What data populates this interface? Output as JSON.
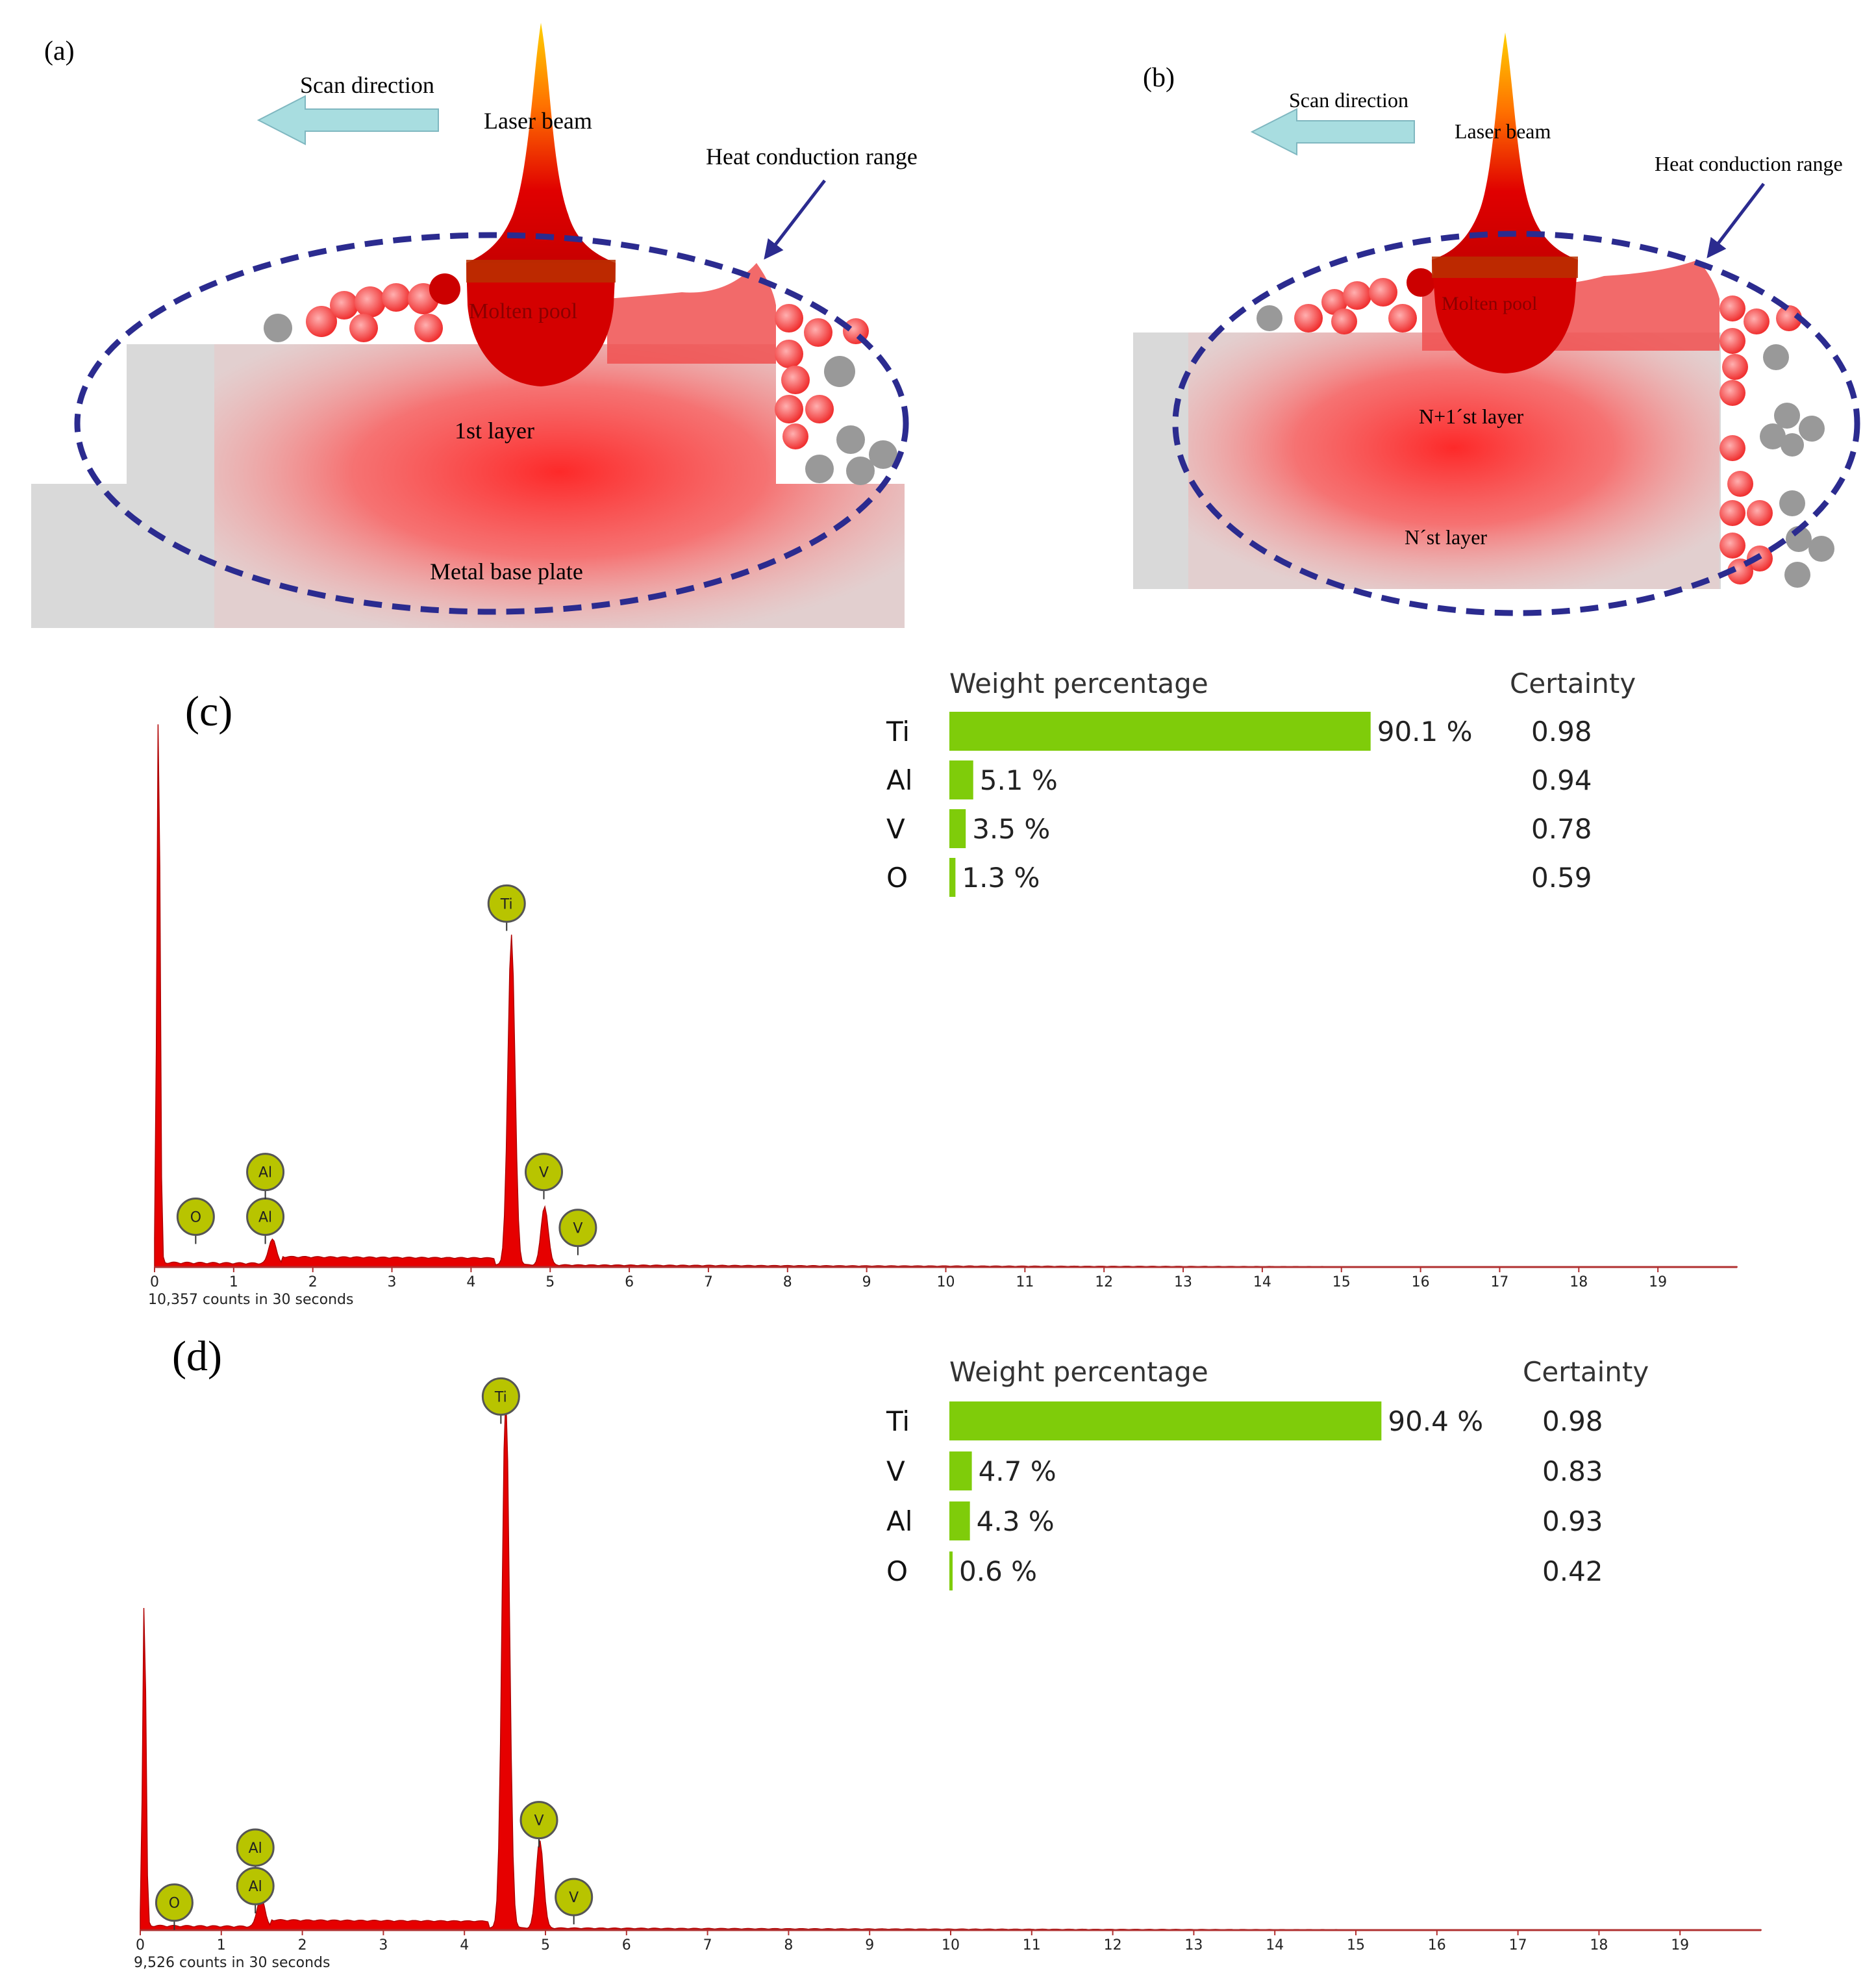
{
  "colors": {
    "bar": "#7fcc0a",
    "peak": "#e60000",
    "marker_fill": "#b8c400",
    "ellipse": "#2b2b8f",
    "arrow": "#a8dde0",
    "base": "#d9d9d9"
  },
  "panel_a": {
    "label": "(a)",
    "scan_direction": "Scan direction",
    "laser_beam": "Laser beam",
    "heat_conduction": "Heat conduction range",
    "molten_pool": "Molten pool",
    "layer1": "1st layer",
    "base_plate": "Metal base plate"
  },
  "panel_b": {
    "label": "(b)",
    "scan_direction": "Scan direction",
    "laser_beam": "Laser beam",
    "heat_conduction": "Heat conduction range",
    "molten_pool": "Molten pool",
    "layer_n1": "N+1´st layer",
    "layer_n": "N´st layer"
  },
  "chart_data": [
    {
      "type": "bar",
      "panel": "(c)",
      "title": "Weight percentage",
      "certainty_header": "Certainty",
      "categories": [
        "Ti",
        "Al",
        "V",
        "O"
      ],
      "values": [
        90.1,
        5.1,
        3.5,
        1.3
      ],
      "value_labels": [
        "90.1 %",
        "5.1 %",
        "3.5 %",
        "1.3 %"
      ],
      "certainty": [
        "0.98",
        "0.94",
        "0.78",
        "0.59"
      ]
    },
    {
      "type": "line",
      "panel": "(c)",
      "xlim": [
        0,
        20
      ],
      "x_ticks": [
        "0",
        "1",
        "2",
        "3",
        "4",
        "5",
        "6",
        "7",
        "8",
        "9",
        "10",
        "11",
        "12",
        "13",
        "14",
        "15",
        "16",
        "17",
        "18",
        "19"
      ],
      "caption": "10,357 counts in 30 seconds",
      "peaks": [
        {
          "x": 0.05,
          "h": 1.0
        },
        {
          "x": 1.49,
          "h": 0.045
        },
        {
          "x": 4.51,
          "h": 0.59
        },
        {
          "x": 4.93,
          "h": 0.105
        }
      ],
      "markers": [
        {
          "label": "O",
          "x": 0.52,
          "level": 0.09
        },
        {
          "label": "Al",
          "x": 1.4,
          "level": 0.09
        },
        {
          "label": "Al",
          "x": 1.4,
          "level": 0.17
        },
        {
          "label": "Ti",
          "x": 4.45,
          "level": 0.65
        },
        {
          "label": "V",
          "x": 4.92,
          "level": 0.17
        },
        {
          "label": "V",
          "x": 5.35,
          "level": 0.07
        }
      ]
    },
    {
      "type": "bar",
      "panel": "(d)",
      "title": "Weight percentage",
      "certainty_header": "Certainty",
      "categories": [
        "Ti",
        "V",
        "Al",
        "O"
      ],
      "values": [
        90.4,
        4.7,
        4.3,
        0.6
      ],
      "value_labels": [
        "90.4 %",
        "4.7 %",
        "4.3 %",
        "0.6 %"
      ],
      "certainty": [
        "0.98",
        "0.83",
        "0.93",
        "0.42"
      ]
    },
    {
      "type": "line",
      "panel": "(d)",
      "xlim": [
        0,
        20
      ],
      "x_ticks": [
        "0",
        "1",
        "2",
        "3",
        "4",
        "5",
        "6",
        "7",
        "8",
        "9",
        "10",
        "11",
        "12",
        "13",
        "14",
        "15",
        "16",
        "17",
        "18",
        "19"
      ],
      "caption": "9,526 counts in 30 seconds",
      "peaks": [
        {
          "x": 0.05,
          "h": 0.6
        },
        {
          "x": 1.49,
          "h": 0.055
        },
        {
          "x": 4.51,
          "h": 0.97
        },
        {
          "x": 4.93,
          "h": 0.16
        }
      ],
      "markers": [
        {
          "label": "O",
          "x": 0.42,
          "level": 0.05
        },
        {
          "label": "Al",
          "x": 1.42,
          "level": 0.15
        },
        {
          "label": "Al",
          "x": 1.42,
          "level": 0.08
        },
        {
          "label": "Ti",
          "x": 4.45,
          "level": 0.97
        },
        {
          "label": "V",
          "x": 4.92,
          "level": 0.2
        },
        {
          "label": "V",
          "x": 5.35,
          "level": 0.06
        }
      ]
    }
  ]
}
